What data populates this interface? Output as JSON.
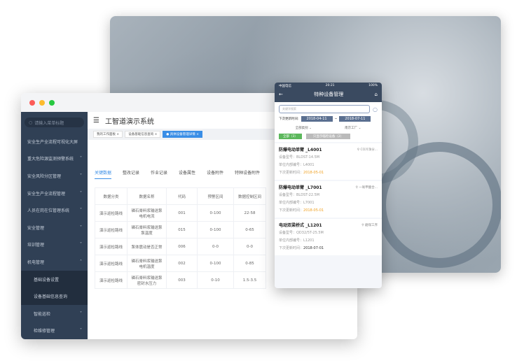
{
  "desktop": {
    "search_placeholder": "请输入菜单标题",
    "app_title": "工智道演示系统",
    "sidebar": [
      {
        "label": "安全生产全流程可视化大屏",
        "chevron": false
      },
      {
        "label": "重大危险源监测预警系统",
        "chevron": true
      },
      {
        "label": "安全风险分区管理",
        "chevron": true
      },
      {
        "label": "安全生产全流程管理",
        "chevron": true
      },
      {
        "label": "人员在岗在位管理系统",
        "chevron": true
      },
      {
        "label": "安全管理",
        "chevron": true
      },
      {
        "label": "培训管理",
        "chevron": true
      },
      {
        "label": "机电管理",
        "chevron": true
      },
      {
        "label": "基础设备设置",
        "chevron": false
      },
      {
        "label": "设备基础信息查询",
        "chevron": false
      },
      {
        "label": "智能巡检",
        "chevron": true
      },
      {
        "label": "检维修管理",
        "chevron": true
      }
    ],
    "tags": [
      "我的工作面板",
      "设备基础信息查询",
      "具体设备管理详情"
    ],
    "tabs": [
      "关键数据",
      "整改记录",
      "作业记录",
      "设备属性",
      "设备附件",
      "特种设备附件"
    ],
    "table": {
      "headers": [
        "数据分类",
        "数据名称",
        "代码",
        "预警区间",
        "数据控制区间"
      ],
      "rows": [
        [
          "演示巡检路线",
          "磷石膏料浆输送泵电机电流",
          "001",
          "0-100",
          "22-58"
        ],
        [
          "演示巡检路线",
          "磷石膏料浆输送泵泵温度",
          "015",
          "0-100",
          "0-65"
        ],
        [
          "演示巡检路线",
          "泵体震动是否正常",
          "006",
          "0-0",
          "0-0"
        ],
        [
          "演示巡检路线",
          "磷石膏料浆输送泵电机温度",
          "002",
          "0-100",
          "0-85"
        ],
        [
          "演示巡检路线",
          "磷石膏料浆输送泵密封水压力",
          "003",
          "0-10",
          "1.5-3.5"
        ]
      ]
    }
  },
  "mobile": {
    "carrier": "中国电信",
    "time": "20:21",
    "battery": "100%",
    "title": "特种设备管理",
    "search_placeholder": "关键字搜索",
    "date_label": "下次更新时间:",
    "date_from": "2018-04-11",
    "date_sep": "~",
    "date_to": "2018-07-11",
    "filter_type": "全部类别",
    "filter_factory": "南京工厂",
    "btn_all": "全部（3）",
    "btn_only": "只显示临检设备（2）",
    "items": [
      {
        "name": "防爆电动单臂 _L4001",
        "location": "CO冷净分...",
        "model": "设备型号：BLDST-14.5M",
        "code": "单位内部编号：L4001",
        "next_label": "下次更新时间：",
        "next": "2018-05-01",
        "next_color": "#f0a020"
      },
      {
        "name": "防爆电动单臂 _L7001",
        "location": "一氧甲酸合...",
        "model": "设备型号：BLDST-22.5M",
        "code": "单位内部编号：L7001",
        "next_label": "下次更新时间：",
        "next": "2018-05-01",
        "next_color": "#f0a020"
      },
      {
        "name": "电动双梁桥式 _L1201",
        "location": "磨煤工序",
        "model": "设备型号：QD32/5T-25.5M",
        "code": "单位内部编号：L1201",
        "next_label": "下次更新时间：",
        "next": "2018-07-01",
        "next_color": "#333333"
      }
    ]
  },
  "colors": {
    "accent": "#3a8ee6",
    "sidebar": "#304055",
    "green": "#5cb85c"
  }
}
